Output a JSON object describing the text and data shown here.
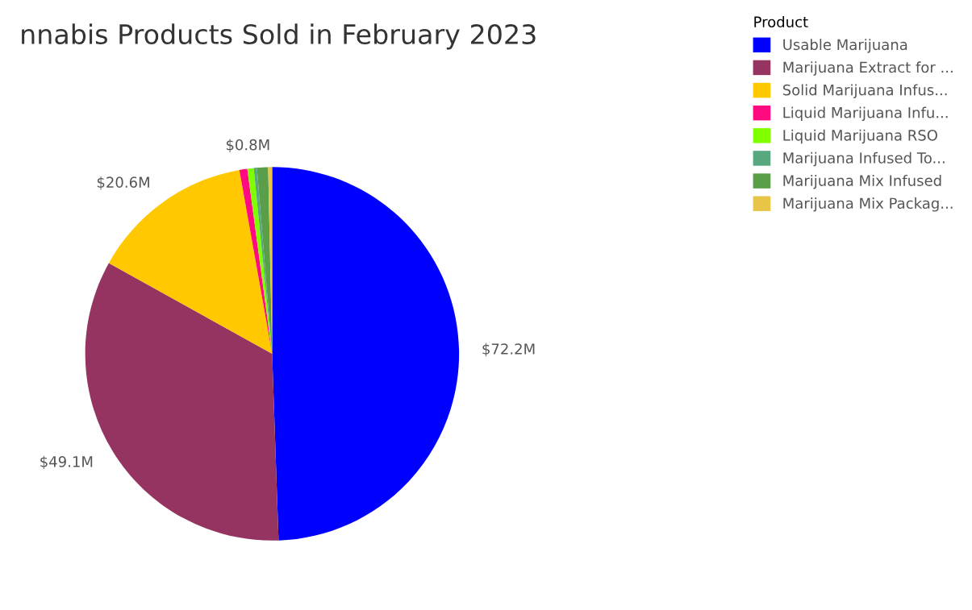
{
  "chart_data": {
    "type": "pie",
    "title": "nnabis Products Sold in February 2023",
    "legend_title": "Product",
    "categories": [
      "Usable Marijuana",
      "Marijuana Extract for ...",
      "Solid Marijuana Infus...",
      "Liquid Marijuana Infu...",
      "Liquid Marijuana RSO",
      "Marijuana Infused To...",
      "Marijuana Mix Infused",
      "Marijuana Mix Packag..."
    ],
    "values": [
      72.2,
      49.1,
      20.6,
      1.0,
      0.8,
      0.4,
      1.4,
      0.5
    ],
    "value_labels": [
      "$72.2M",
      "$49.1M",
      "$20.6M",
      null,
      "$0.8M",
      null,
      null,
      null
    ],
    "colors": [
      "#0000ff",
      "#963461",
      "#ffc800",
      "#ff0a7f",
      "#7fff00",
      "#57a87e",
      "#5a9e4a",
      "#e8c547"
    ],
    "legend": "top right"
  }
}
